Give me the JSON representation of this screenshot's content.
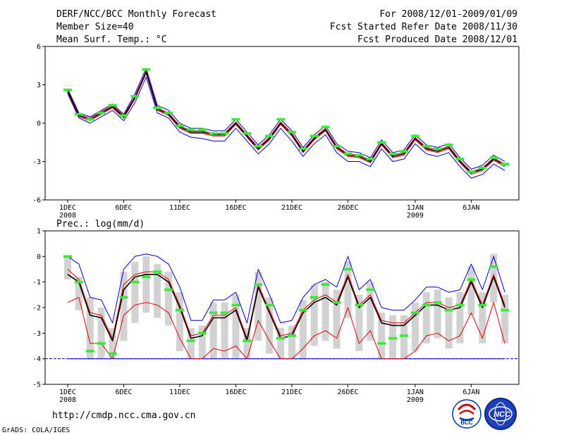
{
  "header": {
    "title": "DERF/NCC/BCC Monthly Forecast",
    "member_size": "Member Size=40",
    "variable": "Mean Surf. Temp.: °C",
    "period": "For 2008/12/01-2009/01/09",
    "started": "Fcst Started Refer Date 2008/11/30",
    "produced": "Fcst Produced Date 2008/12/01"
  },
  "footer": {
    "url": "http://cmdp.ncc.cma.gov.cn",
    "grads": "GrADS: COLA/IGES",
    "logo_left": "BCC",
    "logo_right": "NCC"
  },
  "colors": {
    "mean": "#000000",
    "inner": "#e00000",
    "outer": "#0000cc",
    "obs": "#33ee33",
    "bar": "#d2d2d2"
  },
  "chart_data": [
    {
      "type": "line",
      "title": "Mean Surf. Temp.: °C",
      "ylabel": "°C",
      "ylim": [
        -6,
        6
      ],
      "yticks": [
        "6",
        "3",
        "0",
        "-3",
        "-6"
      ],
      "x": [
        1,
        2,
        3,
        4,
        5,
        6,
        7,
        8,
        9,
        10,
        11,
        12,
        13,
        14,
        15,
        16,
        17,
        18,
        19,
        20,
        21,
        22,
        23,
        24,
        25,
        26,
        27,
        28,
        29,
        30,
        31,
        32,
        33,
        34,
        35,
        36,
        37,
        38,
        39,
        40
      ],
      "xticks": [
        {
          "day": 1,
          "label": "1DEC",
          "sub": "2008"
        },
        {
          "day": 6,
          "label": "6DEC",
          "sub": ""
        },
        {
          "day": 11,
          "label": "11DEC",
          "sub": ""
        },
        {
          "day": 16,
          "label": "16DEC",
          "sub": ""
        },
        {
          "day": 21,
          "label": "21DEC",
          "sub": ""
        },
        {
          "day": 26,
          "label": "26DEC",
          "sub": ""
        },
        {
          "day": 32,
          "label": "1JAN",
          "sub": "2009"
        },
        {
          "day": 37,
          "label": "6JAN",
          "sub": ""
        }
      ],
      "series": [
        {
          "name": "ensemble mean",
          "role": "mean",
          "values": [
            2.5,
            0.6,
            0.3,
            0.8,
            1.3,
            0.5,
            2.0,
            4.0,
            1.1,
            0.7,
            -0.3,
            -0.7,
            -0.7,
            -0.9,
            -0.9,
            0.0,
            -1.0,
            -2.0,
            -1.2,
            0.0,
            -0.9,
            -2.2,
            -1.2,
            -0.5,
            -1.9,
            -2.5,
            -2.6,
            -3.0,
            -1.6,
            -2.6,
            -2.4,
            -1.2,
            -2.0,
            -2.2,
            -1.9,
            -3.0,
            -3.9,
            -3.6,
            -2.8,
            -3.3
          ]
        },
        {
          "name": "upper red",
          "role": "inner",
          "values": [
            2.6,
            0.7,
            0.4,
            0.9,
            1.4,
            0.6,
            2.1,
            4.1,
            1.2,
            0.8,
            -0.2,
            -0.6,
            -0.6,
            -0.8,
            -0.8,
            0.1,
            -0.9,
            -1.9,
            -1.1,
            0.1,
            -0.8,
            -2.1,
            -1.1,
            -0.4,
            -1.8,
            -2.4,
            -2.5,
            -2.9,
            -1.5,
            -2.5,
            -2.3,
            -1.1,
            -1.9,
            -2.1,
            -1.8,
            -2.9,
            -3.8,
            -3.5,
            -2.7,
            -3.2
          ]
        },
        {
          "name": "lower red",
          "role": "inner",
          "values": [
            2.4,
            0.5,
            0.2,
            0.7,
            1.2,
            0.4,
            1.9,
            3.9,
            1.0,
            0.6,
            -0.4,
            -0.8,
            -0.8,
            -1.0,
            -1.0,
            -0.1,
            -1.1,
            -2.1,
            -1.3,
            -0.1,
            -1.0,
            -2.3,
            -1.3,
            -0.6,
            -2.0,
            -2.6,
            -2.7,
            -3.1,
            -1.7,
            -2.7,
            -2.5,
            -1.3,
            -2.1,
            -2.3,
            -2.0,
            -3.1,
            -4.0,
            -3.7,
            -2.9,
            -3.4
          ]
        },
        {
          "name": "upper blue",
          "role": "outer",
          "values": [
            2.7,
            0.8,
            0.5,
            1.0,
            1.5,
            0.7,
            2.3,
            4.3,
            1.4,
            1.0,
            0.0,
            -0.4,
            -0.4,
            -0.6,
            -0.6,
            0.3,
            -0.7,
            -1.7,
            -0.9,
            0.3,
            -0.6,
            -1.9,
            -0.9,
            -0.2,
            -1.6,
            -2.2,
            -2.3,
            -2.7,
            -1.3,
            -2.3,
            -2.1,
            -0.9,
            -1.7,
            -1.9,
            -1.6,
            -2.7,
            -3.6,
            -3.3,
            -2.5,
            -3.0
          ]
        },
        {
          "name": "lower blue",
          "role": "outer",
          "values": [
            2.3,
            0.4,
            0.0,
            0.5,
            1.0,
            0.2,
            1.6,
            3.6,
            0.8,
            0.4,
            -0.7,
            -1.1,
            -1.2,
            -1.4,
            -1.4,
            -0.4,
            -1.4,
            -2.4,
            -1.6,
            -0.4,
            -1.4,
            -2.6,
            -1.6,
            -0.9,
            -2.3,
            -3.0,
            -3.0,
            -3.4,
            -2.0,
            -3.0,
            -2.8,
            -1.6,
            -2.4,
            -2.6,
            -2.3,
            -3.4,
            -4.3,
            -4.0,
            -3.2,
            -3.7
          ]
        }
      ],
      "observations": [
        2.6,
        0.7,
        0.3,
        0.8,
        1.4,
        0.6,
        2.1,
        4.2,
        1.2,
        0.8,
        -0.2,
        -0.5,
        -0.5,
        -0.8,
        -0.8,
        0.3,
        -0.8,
        -1.8,
        -1.0,
        0.3,
        -0.7,
        -2.0,
        -1.0,
        -0.3,
        -1.8,
        -2.4,
        -2.5,
        -2.8,
        -1.5,
        -2.4,
        -2.2,
        -1.0,
        -1.8,
        -2.0,
        -1.7,
        -2.8,
        -3.8,
        -3.5,
        -2.7,
        -3.2
      ]
    },
    {
      "type": "line",
      "title": "Prec.: log(mm/d)",
      "ylabel": "log(mm/d)",
      "ylim": [
        -5,
        1
      ],
      "yticks": [
        "1",
        "0",
        "-1",
        "-2",
        "-3",
        "-4",
        "-5"
      ],
      "baseline": -4,
      "x": [
        1,
        2,
        3,
        4,
        5,
        6,
        7,
        8,
        9,
        10,
        11,
        12,
        13,
        14,
        15,
        16,
        17,
        18,
        19,
        20,
        21,
        22,
        23,
        24,
        25,
        26,
        27,
        28,
        29,
        30,
        31,
        32,
        33,
        34,
        35,
        36,
        37,
        38,
        39,
        40
      ],
      "xticks": [
        {
          "day": 1,
          "label": "1DEC",
          "sub": "2008"
        },
        {
          "day": 6,
          "label": "6DEC",
          "sub": ""
        },
        {
          "day": 11,
          "label": "11DEC",
          "sub": ""
        },
        {
          "day": 16,
          "label": "16DEC",
          "sub": ""
        },
        {
          "day": 21,
          "label": "21DEC",
          "sub": ""
        },
        {
          "day": 26,
          "label": "26DEC",
          "sub": ""
        },
        {
          "day": 32,
          "label": "1JAN",
          "sub": "2009"
        },
        {
          "day": 37,
          "label": "6JAN",
          "sub": ""
        }
      ],
      "series": [
        {
          "name": "ensemble mean",
          "role": "mean",
          "values": [
            -0.7,
            -1.0,
            -2.3,
            -2.4,
            -3.3,
            -1.3,
            -0.8,
            -0.7,
            -0.7,
            -1.0,
            -2.0,
            -3.2,
            -3.1,
            -2.4,
            -2.4,
            -2.1,
            -3.3,
            -1.2,
            -2.2,
            -3.2,
            -3.1,
            -2.2,
            -1.8,
            -1.6,
            -1.9,
            -0.8,
            -2.0,
            -1.6,
            -2.6,
            -2.7,
            -2.7,
            -2.3,
            -1.9,
            -1.9,
            -2.1,
            -2.0,
            -1.0,
            -2.0,
            -0.8,
            -2.0
          ]
        },
        {
          "name": "upper red",
          "role": "inner",
          "values": [
            -0.5,
            -0.9,
            -2.2,
            -2.3,
            -3.2,
            -1.1,
            -0.7,
            -0.6,
            -0.6,
            -0.9,
            -1.9,
            -3.1,
            -3.0,
            -2.3,
            -2.3,
            -2.0,
            -3.2,
            -1.1,
            -2.1,
            -3.1,
            -3.0,
            -2.1,
            -1.7,
            -1.5,
            -1.8,
            -0.7,
            -1.9,
            -1.5,
            -2.5,
            -2.6,
            -2.6,
            -2.2,
            -1.8,
            -1.8,
            -2.0,
            -1.9,
            -0.9,
            -1.9,
            -0.7,
            -1.9
          ]
        },
        {
          "name": "lower red",
          "role": "inner",
          "values": [
            -1.8,
            -1.6,
            -3.4,
            -3.4,
            -4.0,
            -2.3,
            -1.9,
            -1.8,
            -1.9,
            -2.2,
            -3.2,
            -4.0,
            -4.0,
            -3.6,
            -3.7,
            -3.5,
            -4.0,
            -2.5,
            -3.3,
            -4.0,
            -4.0,
            -3.6,
            -3.1,
            -2.9,
            -3.2,
            -2.0,
            -3.4,
            -2.9,
            -4.0,
            -4.0,
            -4.0,
            -3.7,
            -3.1,
            -3.0,
            -3.3,
            -3.1,
            -2.2,
            -3.2,
            -1.8,
            -3.4
          ]
        },
        {
          "name": "upper blue",
          "role": "outer",
          "values": [
            0.0,
            -0.3,
            -1.6,
            -1.7,
            -2.6,
            -0.5,
            0.0,
            0.1,
            0.0,
            -0.3,
            -1.2,
            -2.5,
            -2.5,
            -1.7,
            -1.7,
            -1.4,
            -2.6,
            -0.5,
            -1.5,
            -2.6,
            -2.5,
            -1.6,
            -1.1,
            -0.9,
            -1.2,
            0.0,
            -1.3,
            -0.9,
            -2.0,
            -2.1,
            -2.1,
            -1.7,
            -1.2,
            -1.2,
            -1.4,
            -1.3,
            -0.3,
            -1.3,
            0.0,
            -1.4
          ]
        },
        {
          "name": "lower blue",
          "role": "outer",
          "values": [
            -4.0,
            -4.0,
            -4.0,
            -4.0,
            -4.0,
            -4.0,
            -4.0,
            -4.0,
            -4.0,
            -4.0,
            -4.0,
            -4.0,
            -4.0,
            -4.0,
            -4.0,
            -4.0,
            -4.0,
            -4.0,
            -4.0,
            -4.0,
            -4.0,
            -4.0,
            -4.0,
            -4.0,
            -4.0,
            -4.0,
            -4.0,
            -4.0,
            -4.0,
            -4.0,
            -4.0,
            -4.0,
            -4.0,
            -4.0,
            -4.0,
            -4.0,
            -4.0,
            -4.0,
            -4.0,
            -4.0
          ]
        }
      ],
      "observations": [
        0.0,
        -1.0,
        -3.7,
        -3.4,
        -3.8,
        -1.6,
        -1.0,
        -0.8,
        -0.6,
        -1.3,
        -2.1,
        -3.3,
        -3.0,
        -2.2,
        -2.2,
        -1.9,
        -3.3,
        -1.1,
        -1.9,
        -3.2,
        -3.1,
        -2.1,
        -1.6,
        -1.1,
        -1.8,
        -0.5,
        -1.9,
        -1.3,
        -3.4,
        -3.2,
        -3.1,
        -2.2,
        -1.9,
        -1.8,
        -2.1,
        -1.9,
        -0.9,
        -1.9,
        -0.4,
        -2.1
      ],
      "bars": [
        {
          "top": 0.0,
          "bottom": -0.9
        },
        {
          "top": -0.8,
          "bottom": -2.1
        },
        {
          "top": -1.6,
          "bottom": -4.0
        },
        {
          "top": -2.0,
          "bottom": -4.0
        },
        {
          "top": -2.8,
          "bottom": -4.0
        },
        {
          "top": -0.6,
          "bottom": -3.3
        },
        {
          "top": -0.2,
          "bottom": -2.6
        },
        {
          "top": 0.0,
          "bottom": -2.2
        },
        {
          "top": -0.3,
          "bottom": -2.4
        },
        {
          "top": -0.6,
          "bottom": -2.7
        },
        {
          "top": -1.4,
          "bottom": -3.7
        },
        {
          "top": -2.8,
          "bottom": -4.0
        },
        {
          "top": -2.7,
          "bottom": -4.0
        },
        {
          "top": -1.8,
          "bottom": -4.0
        },
        {
          "top": -1.8,
          "bottom": -4.0
        },
        {
          "top": -1.5,
          "bottom": -4.0
        },
        {
          "top": -2.8,
          "bottom": -4.0
        },
        {
          "top": -0.6,
          "bottom": -3.3
        },
        {
          "top": -1.6,
          "bottom": -3.8
        },
        {
          "top": -2.8,
          "bottom": -4.0
        },
        {
          "top": -2.7,
          "bottom": -4.0
        },
        {
          "top": -1.7,
          "bottom": -4.0
        },
        {
          "top": -1.1,
          "bottom": -3.5
        },
        {
          "top": -1.0,
          "bottom": -3.3
        },
        {
          "top": -1.3,
          "bottom": -3.6
        },
        {
          "top": -0.2,
          "bottom": -2.4
        },
        {
          "top": -1.5,
          "bottom": -3.7
        },
        {
          "top": -1.0,
          "bottom": -3.3
        },
        {
          "top": -2.2,
          "bottom": -4.0
        },
        {
          "top": -2.3,
          "bottom": -4.0
        },
        {
          "top": -2.3,
          "bottom": -4.0
        },
        {
          "top": -1.8,
          "bottom": -3.7
        },
        {
          "top": -1.4,
          "bottom": -3.4
        },
        {
          "top": -1.3,
          "bottom": -3.2
        },
        {
          "top": -1.6,
          "bottom": -3.6
        },
        {
          "top": -1.4,
          "bottom": -3.4
        },
        {
          "top": -0.4,
          "bottom": -2.3
        },
        {
          "top": -1.4,
          "bottom": -3.4
        },
        {
          "top": 0.1,
          "bottom": -1.8
        },
        {
          "top": -1.5,
          "bottom": -3.4
        }
      ]
    }
  ]
}
